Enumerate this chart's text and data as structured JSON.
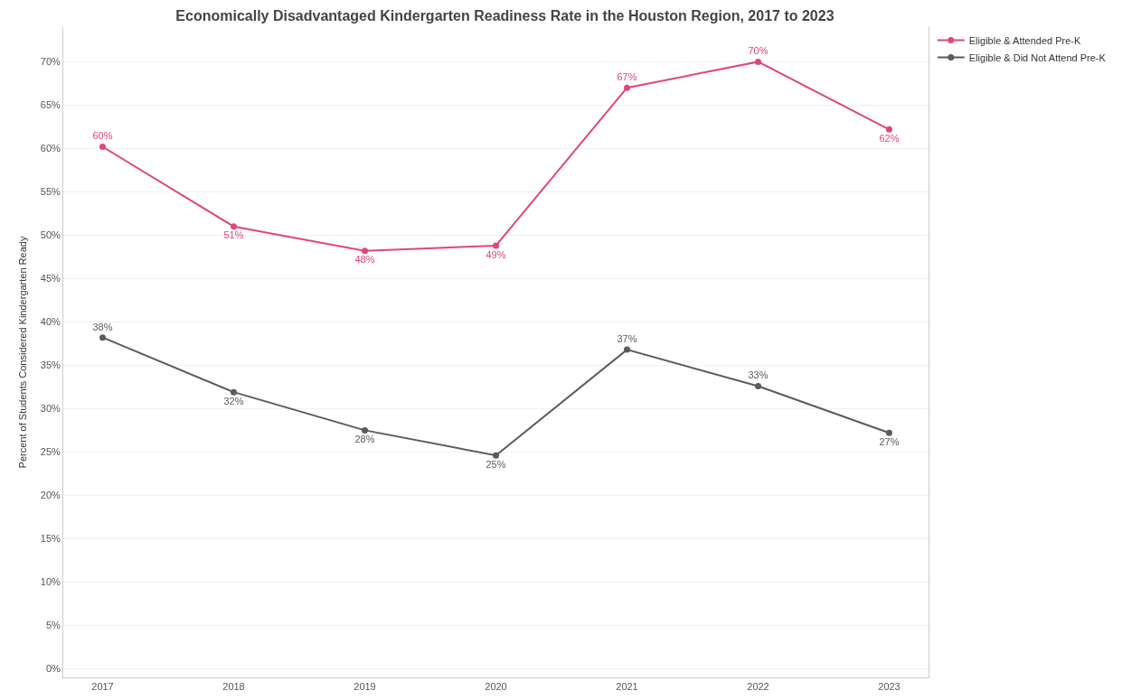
{
  "chart_data": {
    "type": "line",
    "title": "Economically Disadvantaged Kindergarten Readiness Rate in the Houston Region, 2017 to 2023",
    "ylabel": "Percent of Students Considered Kindergarten Ready",
    "categories": [
      "2017",
      "2018",
      "2019",
      "2020",
      "2021",
      "2022",
      "2023"
    ],
    "series": [
      {
        "name": "Eligible & Attended Pre-K",
        "color": "#e0457b",
        "values": [
          60.2,
          51.0,
          48.2,
          48.8,
          67.0,
          70.0,
          62.2
        ],
        "value_labels": [
          "60%",
          "51%",
          "48%",
          "49%",
          "67%",
          "70%",
          "62%"
        ]
      },
      {
        "name": "Eligible & Did Not Attend Pre-K",
        "color": "#5b5b5b",
        "values": [
          38.2,
          31.9,
          27.5,
          24.6,
          36.8,
          32.6,
          27.2
        ],
        "value_labels": [
          "38%",
          "32%",
          "28%",
          "25%",
          "37%",
          "33%",
          "27%"
        ]
      }
    ],
    "ylim": [
      -1,
      74
    ],
    "yticks": [
      {
        "value": 0,
        "label": "0%"
      },
      {
        "value": 5,
        "label": "5%"
      },
      {
        "value": 10,
        "label": "10%"
      },
      {
        "value": 15,
        "label": "15%"
      },
      {
        "value": 20,
        "label": "20%"
      },
      {
        "value": 25,
        "label": "25%"
      },
      {
        "value": 30,
        "label": "30%"
      },
      {
        "value": 35,
        "label": "35%"
      },
      {
        "value": 40,
        "label": "40%"
      },
      {
        "value": 45,
        "label": "45%"
      },
      {
        "value": 50,
        "label": "50%"
      },
      {
        "value": 55,
        "label": "55%"
      },
      {
        "value": 60,
        "label": "60%"
      },
      {
        "value": 65,
        "label": "65%"
      },
      {
        "value": 70,
        "label": "70%"
      }
    ],
    "grid": "y",
    "legend": "top right",
    "marker": "circle",
    "line_style": "solid"
  }
}
